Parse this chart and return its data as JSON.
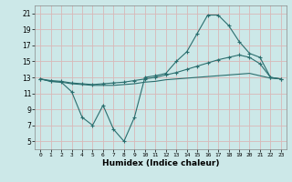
{
  "xlabel": "Humidex (Indice chaleur)",
  "bg_color": "#cce8e8",
  "grid_color": "#d8b8b8",
  "line_color": "#2a6e6e",
  "xlim": [
    -0.5,
    23.5
  ],
  "ylim": [
    4,
    22
  ],
  "xticks": [
    0,
    1,
    2,
    3,
    4,
    5,
    6,
    7,
    8,
    9,
    10,
    11,
    12,
    13,
    14,
    15,
    16,
    17,
    18,
    19,
    20,
    21,
    22,
    23
  ],
  "yticks": [
    5,
    7,
    9,
    11,
    13,
    15,
    17,
    19,
    21
  ],
  "line1_x": [
    0,
    1,
    2,
    3,
    4,
    5,
    6,
    7,
    8,
    9,
    10,
    11,
    12,
    13,
    14,
    15,
    16,
    17,
    18,
    19,
    20,
    21,
    22,
    23
  ],
  "line1_y": [
    12.8,
    12.5,
    12.4,
    11.2,
    8.0,
    7.0,
    9.5,
    6.5,
    5.0,
    8.0,
    13.0,
    13.2,
    13.5,
    15.0,
    16.2,
    18.5,
    20.8,
    20.8,
    19.5,
    17.5,
    16.0,
    15.5,
    13.0,
    12.8
  ],
  "line2_x": [
    0,
    1,
    2,
    3,
    4,
    5,
    6,
    7,
    8,
    9,
    10,
    11,
    12,
    13,
    14,
    15,
    16,
    17,
    18,
    19,
    20,
    21,
    22,
    23
  ],
  "line2_y": [
    12.8,
    12.6,
    12.5,
    12.3,
    12.2,
    12.1,
    12.2,
    12.3,
    12.4,
    12.6,
    12.8,
    13.0,
    13.3,
    13.6,
    14.0,
    14.4,
    14.8,
    15.2,
    15.5,
    15.8,
    15.5,
    14.7,
    13.0,
    12.8
  ],
  "line3_x": [
    0,
    1,
    2,
    3,
    4,
    5,
    6,
    7,
    8,
    9,
    10,
    11,
    12,
    13,
    14,
    15,
    16,
    17,
    18,
    19,
    20,
    21,
    22,
    23
  ],
  "line3_y": [
    12.8,
    12.5,
    12.4,
    12.2,
    12.1,
    12.0,
    12.0,
    12.0,
    12.1,
    12.2,
    12.4,
    12.5,
    12.7,
    12.8,
    12.9,
    13.0,
    13.1,
    13.2,
    13.3,
    13.4,
    13.5,
    13.2,
    12.9,
    12.8
  ]
}
